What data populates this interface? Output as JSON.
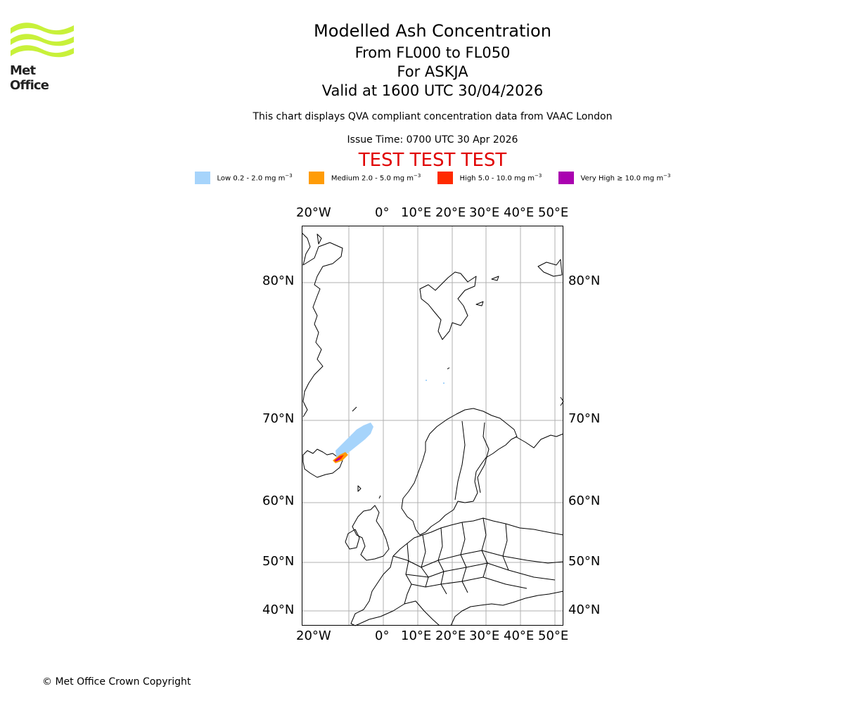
{
  "header": {
    "title": "Modelled Ash Concentration",
    "level_range": "From FL000 to FL050",
    "volcano": "For ASKJA",
    "valid_time": "Valid at 1600 UTC 30/04/2026",
    "disclaimer": "This chart displays QVA compliant concentration data from VAAC London",
    "issue_time": "Issue Time: 0700 UTC 30 Apr 2026",
    "test_banner": "TEST TEST TEST"
  },
  "logo": {
    "text": "Met Office"
  },
  "legend": [
    {
      "label": "Low 0.2 - 2.0 mg m",
      "color": "#a6d4fb"
    },
    {
      "label": "Medium 2.0 - 5.0 mg m",
      "color": "#ff9c07"
    },
    {
      "label": "High 5.0 - 10.0 mg m",
      "color": "#ff2a00"
    },
    {
      "label": "Very High  ≥  10.0 mg m",
      "color": "#aa03b0"
    }
  ],
  "legend_unit_exponent": "−3",
  "axes": {
    "lon_labels": [
      "20°W",
      "0°",
      "10°E",
      "20°E",
      "30°E",
      "40°E",
      "50°E"
    ],
    "lat_labels": [
      "80°N",
      "70°N",
      "60°N",
      "50°N",
      "40°N"
    ]
  },
  "copyright": "© Met Office Crown Copyright"
}
